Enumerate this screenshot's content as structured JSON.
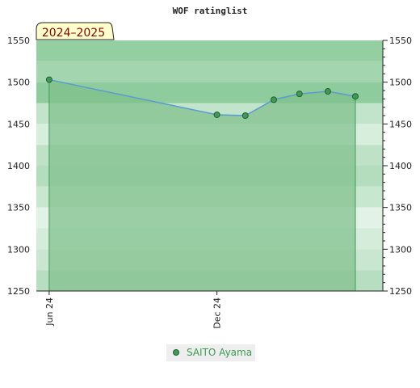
{
  "chart_data": {
    "type": "area",
    "title": "WOF ratinglist",
    "season_badge": "2024–2025",
    "xlabel": "",
    "ylabel": "",
    "ylim": [
      1250,
      1550
    ],
    "y_ticks": [
      1250,
      1300,
      1350,
      1400,
      1450,
      1500,
      1550
    ],
    "x_range": [
      "2024-05-18",
      "2025-05-31"
    ],
    "x_ticks": [
      {
        "date": "2024-06-01",
        "label": "Jun 24"
      },
      {
        "date": "2024-12-01",
        "label": "Dec 24"
      }
    ],
    "series": [
      {
        "name": "SAITO Ayama",
        "color": "#5b9bd5",
        "fill_color": "#7fbf8a",
        "marker_color": "#3f9a55",
        "points": [
          {
            "x": "2024-06-01",
            "y": 1503
          },
          {
            "x": "2024-12-01",
            "y": 1461
          },
          {
            "x": "2025-01-01",
            "y": 1460
          },
          {
            "x": "2025-02-01",
            "y": 1479
          },
          {
            "x": "2025-03-01",
            "y": 1486
          },
          {
            "x": "2025-04-01",
            "y": 1489
          },
          {
            "x": "2025-05-01",
            "y": 1483
          }
        ]
      }
    ],
    "grid": true,
    "legend": "bottom-center"
  }
}
